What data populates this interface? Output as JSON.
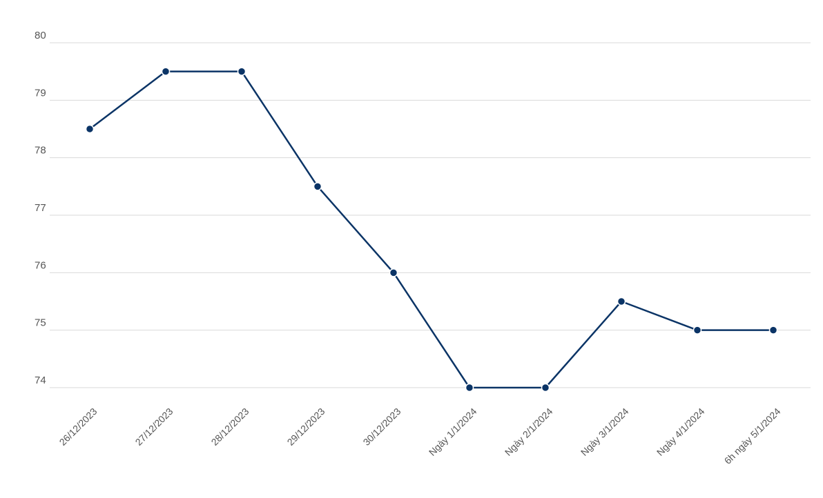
{
  "chart_data": {
    "type": "line",
    "title": "",
    "xlabel": "",
    "ylabel": "",
    "x": [
      "26/12/2023",
      "27/12/2023",
      "28/12/2023",
      "29/12/2023",
      "30/12/2023",
      "Ngày 1/1/2024",
      "Ngày 2/1/2024",
      "Ngày 3/1/2024",
      "Ngày 4/1/2024",
      "6h ngày 5/1/2024"
    ],
    "series": [
      {
        "values": [
          78.5,
          79.5,
          79.5,
          77.5,
          76,
          74,
          74,
          75.5,
          75,
          75
        ],
        "color": "#0b3466"
      }
    ],
    "ylim": [
      74,
      80
    ],
    "yticks": [
      74,
      75,
      76,
      77,
      78,
      79,
      80
    ],
    "grid": true,
    "legend": false
  }
}
